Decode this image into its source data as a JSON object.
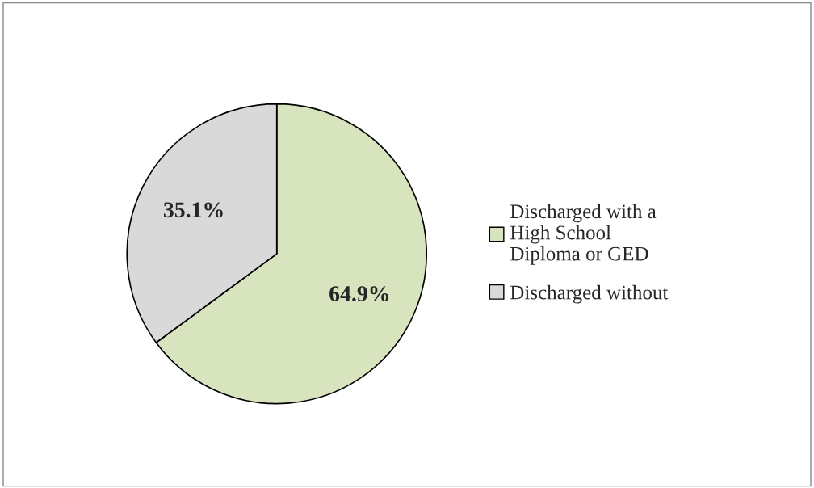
{
  "chart_data": {
    "type": "pie",
    "categories": [
      "Discharged with a High School Diploma or GED",
      "Discharged without"
    ],
    "values": [
      64.9,
      35.1
    ],
    "colors": [
      "#d7e4bd",
      "#d9d9d9"
    ],
    "value_labels": [
      "64.9%",
      "35.1%"
    ],
    "legend": "right"
  }
}
